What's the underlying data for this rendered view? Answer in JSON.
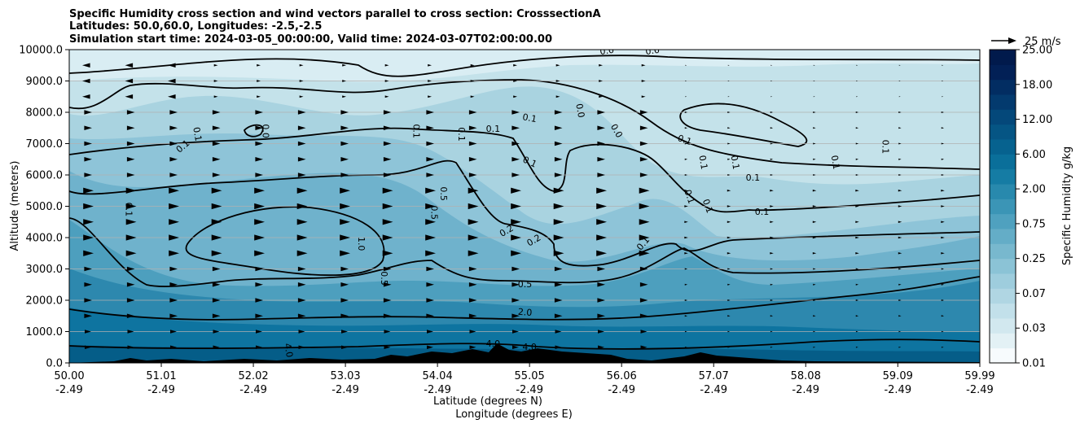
{
  "chart_data": {
    "type": "contourf",
    "title_lines": [
      "Specific Humidity cross section and wind vectors parallel to cross section: CrosssectionA",
      "Latitudes: 50.0,60.0, Longitudes: -2.5,-2.5",
      "Simulation start time: 2024-03-05_00:00:00, Valid time: 2024-03-07T02:00:00.00"
    ],
    "ylabel": "Altitude (meters)",
    "xlabel_lines": [
      "Latitude (degrees N)",
      "Longitude (degrees E)"
    ],
    "ylim": [
      0,
      10000
    ],
    "y_ticks": [
      "0.0",
      "1000.0",
      "2000.0",
      "3000.0",
      "4000.0",
      "5000.0",
      "6000.0",
      "7000.0",
      "8000.0",
      "9000.0",
      "10000.0"
    ],
    "x_ticks": [
      {
        "lat": "50.00",
        "lon": "-2.49"
      },
      {
        "lat": "51.01",
        "lon": "-2.49"
      },
      {
        "lat": "52.02",
        "lon": "-2.49"
      },
      {
        "lat": "53.03",
        "lon": "-2.49"
      },
      {
        "lat": "54.04",
        "lon": "-2.49"
      },
      {
        "lat": "55.05",
        "lon": "-2.49"
      },
      {
        "lat": "56.06",
        "lon": "-2.49"
      },
      {
        "lat": "57.07",
        "lon": "-2.49"
      },
      {
        "lat": "58.08",
        "lon": "-2.49"
      },
      {
        "lat": "59.09",
        "lon": "-2.49"
      },
      {
        "lat": "59.99",
        "lon": "-2.49"
      }
    ],
    "colorbar": {
      "label": "Specific Humidity g/kg",
      "tick_labels": [
        "0.01",
        "0.03",
        "0.07",
        "0.25",
        "0.75",
        "2.00",
        "6.00",
        "12.00",
        "18.00",
        "25.00"
      ],
      "colors": [
        "#f7fbfd",
        "#e3f1f5",
        "#d2e8ef",
        "#c2e0ea",
        "#b0d6e3",
        "#9ecddd",
        "#8bc3d6",
        "#78b8ce",
        "#64adc7",
        "#4fa1bf",
        "#3b95b6",
        "#2889ad",
        "#157ca4",
        "#0a6f9a",
        "#06628f",
        "#055584",
        "#04487a",
        "#033a6e",
        "#022d62",
        "#022056",
        "#011a4c"
      ]
    },
    "wind_key": "25 m/s",
    "grid": true,
    "contour_labels": [
      {
        "text": "0.0",
        "lat": 55.9,
        "alt": 9950,
        "rot": -8
      },
      {
        "text": "0.0",
        "lat": 56.4,
        "alt": 9950,
        "rot": -8
      },
      {
        "text": "0.0",
        "lat": 55.6,
        "alt": 8050,
        "rot": 80
      },
      {
        "text": "0.0",
        "lat": 52.15,
        "alt": 7400,
        "rot": 90
      },
      {
        "text": "0.0",
        "lat": 56.0,
        "alt": 7400,
        "rot": 60
      },
      {
        "text": "0.1",
        "lat": 51.4,
        "alt": 7300,
        "rot": 80
      },
      {
        "text": "0.1",
        "lat": 51.25,
        "alt": 6900,
        "rot": -40
      },
      {
        "text": "0.1",
        "lat": 53.8,
        "alt": 7400,
        "rot": 90
      },
      {
        "text": "0.1",
        "lat": 54.3,
        "alt": 7300,
        "rot": 90
      },
      {
        "text": "0.1",
        "lat": 54.65,
        "alt": 7450,
        "rot": 0
      },
      {
        "text": "0.1",
        "lat": 55.05,
        "alt": 7800,
        "rot": 10
      },
      {
        "text": "0.1",
        "lat": 55.05,
        "alt": 6400,
        "rot": 25
      },
      {
        "text": "0.1",
        "lat": 56.75,
        "alt": 7100,
        "rot": 20
      },
      {
        "text": "0.1",
        "lat": 56.95,
        "alt": 6400,
        "rot": 80
      },
      {
        "text": "0.1",
        "lat": 57.3,
        "alt": 6400,
        "rot": 80
      },
      {
        "text": "0.1",
        "lat": 57.5,
        "alt": 5900,
        "rot": 0
      },
      {
        "text": "0.1",
        "lat": 56.8,
        "alt": 5300,
        "rot": 70
      },
      {
        "text": "0.1",
        "lat": 57.0,
        "alt": 5000,
        "rot": 70
      },
      {
        "text": "0.1",
        "lat": 57.6,
        "alt": 4800,
        "rot": 0
      },
      {
        "text": "0.1",
        "lat": 56.3,
        "alt": 3800,
        "rot": -50
      },
      {
        "text": "0.1",
        "lat": 58.4,
        "alt": 6400,
        "rot": 80
      },
      {
        "text": "0.1",
        "lat": 58.95,
        "alt": 6900,
        "rot": 90
      },
      {
        "text": "0.1",
        "lat": 50.65,
        "alt": 4900,
        "rot": 90
      },
      {
        "text": "0.2",
        "lat": 54.8,
        "alt": 4200,
        "rot": -30
      },
      {
        "text": "0.2",
        "lat": 55.1,
        "alt": 3900,
        "rot": -30
      },
      {
        "text": "0.5",
        "lat": 54.1,
        "alt": 5400,
        "rot": 90
      },
      {
        "text": "0.5",
        "lat": 54.0,
        "alt": 4800,
        "rot": 90
      },
      {
        "text": "0.5",
        "lat": 53.45,
        "alt": 2700,
        "rot": 90
      },
      {
        "text": "0.5",
        "lat": 55.0,
        "alt": 2500,
        "rot": 0
      },
      {
        "text": "1.0",
        "lat": 53.2,
        "alt": 3800,
        "rot": 90
      },
      {
        "text": "2.0",
        "lat": 55.0,
        "alt": 1600,
        "rot": 5
      },
      {
        "text": "4.0",
        "lat": 54.65,
        "alt": 600,
        "rot": 0
      },
      {
        "text": "4.0",
        "lat": 55.05,
        "alt": 500,
        "rot": 0
      },
      {
        "text": "4.0",
        "lat": 52.4,
        "alt": 400,
        "rot": 80
      }
    ]
  }
}
